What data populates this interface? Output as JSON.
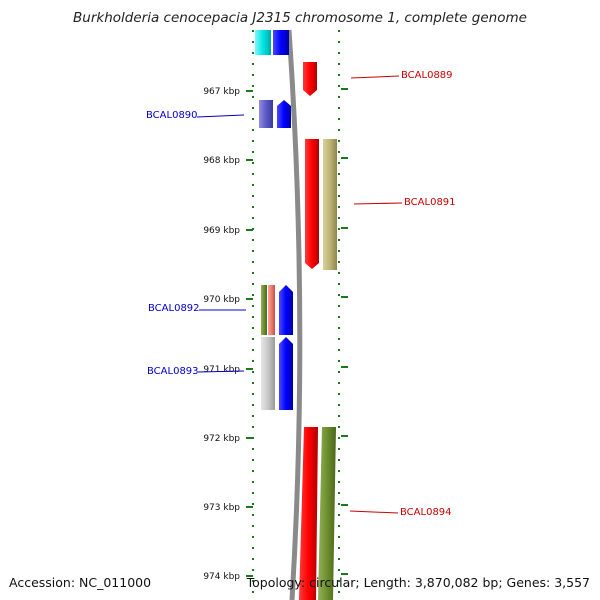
{
  "title": "Burkholderia cenocepacia J2315 chromosome 1, complete genome",
  "accession": "Accession: NC_011000",
  "topology": "Topology: circular; Length: 3,870,082 bp; Genes: 3,557",
  "ticks": [
    {
      "label": "967 kbp"
    },
    {
      "label": "968 kbp"
    },
    {
      "label": "969 kbp"
    },
    {
      "label": "970 kbp"
    },
    {
      "label": "971 kbp"
    },
    {
      "label": "972 kbp"
    },
    {
      "label": "973 kbp"
    },
    {
      "label": "974 kbp"
    }
  ],
  "gene_labels": [
    {
      "text": "BCAL0889",
      "color": "#cc0000"
    },
    {
      "text": "BCAL0890",
      "color": "#0000cc"
    },
    {
      "text": "BCAL0891",
      "color": "#cc0000"
    },
    {
      "text": "BCAL0892",
      "color": "#0000cc"
    },
    {
      "text": "BCAL0893",
      "color": "#0000cc"
    },
    {
      "text": "BCAL0894",
      "color": "#cc0000"
    }
  ],
  "colors": {
    "forward": "#ff0000",
    "reverse": "#0000ff",
    "tick": "#1a7a1a",
    "backbone": "#888888"
  }
}
